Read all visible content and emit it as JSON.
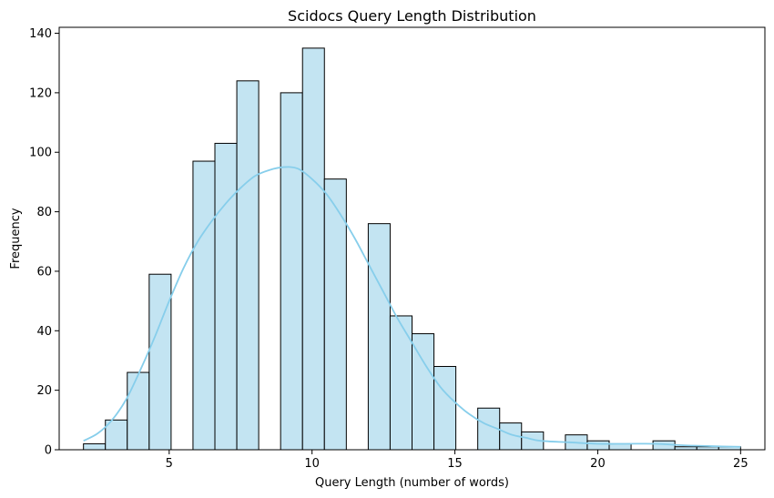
{
  "chart_data": {
    "type": "bar",
    "title": "Scidocs Query Length Distribution",
    "xlabel": "Query Length (number of words)",
    "ylabel": "Frequency",
    "xlim": [
      1.15,
      25.85
    ],
    "ylim": [
      0,
      142
    ],
    "x_ticks": [
      5,
      10,
      15,
      20,
      25
    ],
    "y_ticks": [
      0,
      20,
      40,
      60,
      80,
      100,
      120,
      140
    ],
    "bins": [
      {
        "start": 2.0,
        "end": 2.767,
        "count": 2
      },
      {
        "start": 2.767,
        "end": 3.533,
        "count": 10
      },
      {
        "start": 3.533,
        "end": 4.3,
        "count": 26
      },
      {
        "start": 4.3,
        "end": 5.067,
        "count": 59
      },
      {
        "start": 5.067,
        "end": 5.833,
        "count": 0
      },
      {
        "start": 5.833,
        "end": 6.6,
        "count": 97
      },
      {
        "start": 6.6,
        "end": 7.367,
        "count": 103
      },
      {
        "start": 7.367,
        "end": 8.133,
        "count": 124
      },
      {
        "start": 8.133,
        "end": 8.9,
        "count": 0
      },
      {
        "start": 8.9,
        "end": 9.667,
        "count": 120
      },
      {
        "start": 9.667,
        "end": 10.433,
        "count": 135
      },
      {
        "start": 10.433,
        "end": 11.2,
        "count": 91
      },
      {
        "start": 11.2,
        "end": 11.967,
        "count": 0
      },
      {
        "start": 11.967,
        "end": 12.733,
        "count": 76
      },
      {
        "start": 12.733,
        "end": 13.5,
        "count": 45
      },
      {
        "start": 13.5,
        "end": 14.267,
        "count": 39
      },
      {
        "start": 14.267,
        "end": 15.033,
        "count": 28
      },
      {
        "start": 15.033,
        "end": 15.8,
        "count": 0
      },
      {
        "start": 15.8,
        "end": 16.567,
        "count": 14
      },
      {
        "start": 16.567,
        "end": 17.333,
        "count": 9
      },
      {
        "start": 17.333,
        "end": 18.1,
        "count": 6
      },
      {
        "start": 18.1,
        "end": 18.867,
        "count": 0
      },
      {
        "start": 18.867,
        "end": 19.633,
        "count": 5
      },
      {
        "start": 19.633,
        "end": 20.4,
        "count": 3
      },
      {
        "start": 20.4,
        "end": 21.167,
        "count": 2
      },
      {
        "start": 21.167,
        "end": 21.933,
        "count": 0
      },
      {
        "start": 21.933,
        "end": 22.7,
        "count": 3
      },
      {
        "start": 22.7,
        "end": 23.467,
        "count": 1
      },
      {
        "start": 23.467,
        "end": 24.233,
        "count": 1
      },
      {
        "start": 24.233,
        "end": 25.0,
        "count": 1
      }
    ],
    "kde": {
      "color": "#87ceeb",
      "x": [
        2.0,
        2.5,
        3.0,
        3.5,
        4.0,
        4.5,
        5.0,
        5.5,
        6.0,
        6.5,
        7.0,
        7.5,
        8.0,
        8.5,
        9.0,
        9.5,
        10.0,
        10.5,
        11.0,
        11.5,
        12.0,
        12.5,
        13.0,
        13.5,
        14.0,
        14.5,
        15.0,
        15.5,
        16.0,
        16.5,
        17.0,
        17.5,
        18.0,
        19.0,
        20.0,
        21.0,
        22.0,
        23.0,
        24.0,
        25.0
      ],
      "y": [
        3,
        5.5,
        10,
        17,
        27,
        38,
        50,
        61,
        70,
        77,
        83,
        88,
        92,
        94,
        95,
        94.5,
        91,
        86,
        79,
        71,
        62,
        53,
        44,
        36,
        28,
        21,
        16,
        12,
        9,
        7,
        5,
        4,
        3,
        2.5,
        2,
        2,
        2,
        1.5,
        1.2,
        1
      ]
    },
    "bar_color": "#c3e4f2",
    "bar_edge_color": "#000000",
    "grid": false,
    "legend": "none"
  }
}
